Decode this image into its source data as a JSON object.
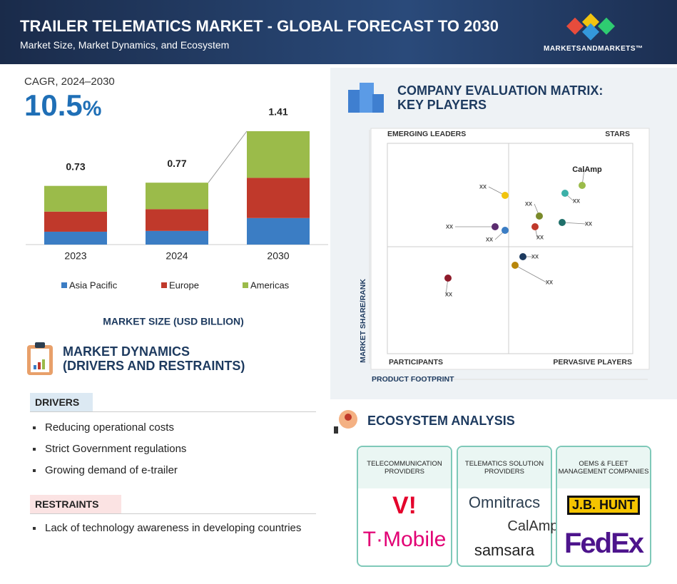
{
  "header": {
    "title": "TRAILER TELEMATICS MARKET - GLOBAL FORECAST TO 2030",
    "subtitle": "Market Size, Market Dynamics, and Ecosystem",
    "brand": "MARKETSANDMARKETS™"
  },
  "cagr": {
    "label": "CAGR, 2024–2030",
    "value": "10.5",
    "unit": "%"
  },
  "chart_data": {
    "type": "stacked-bar",
    "title": "MARKET SIZE (USD BILLION)",
    "categories": [
      "2023",
      "2024",
      "2030"
    ],
    "series": [
      {
        "name": "Asia Pacific",
        "color": "#3b7dc4",
        "values": [
          0.16,
          0.17,
          0.33
        ]
      },
      {
        "name": "Europe",
        "color": "#c0392b",
        "values": [
          0.25,
          0.27,
          0.5
        ]
      },
      {
        "name": "Americas",
        "color": "#9bbb4a",
        "values": [
          0.32,
          0.33,
          0.58
        ]
      }
    ],
    "totals": [
      0.73,
      0.77,
      1.41
    ]
  },
  "matrix": {
    "title": [
      "COMPANY EVALUATION MATRIX:",
      "KEY PLAYERS"
    ],
    "quadrants": [
      "EMERGING LEADERS",
      "STARS",
      "PARTICIPANTS",
      "PERVASIVE PLAYERS"
    ],
    "y_label": "MARKET SHARE/RANK",
    "x_label": "PRODUCT FOOTPRINT",
    "point_labels": [
      "CalAmp",
      "xx",
      "xx",
      "xx",
      "xx",
      "xx",
      "xx",
      "xx",
      "xx",
      "xx",
      "xx"
    ]
  },
  "dynamics": {
    "title": [
      "MARKET DYNAMICS",
      "(DRIVERS AND RESTRAINTS)"
    ],
    "drivers": {
      "heading": "DRIVERS",
      "items": [
        "Reducing operational costs",
        "Strict Government regulations",
        "Growing demand of e-trailer"
      ]
    },
    "restraints": {
      "heading": "RESTRAINTS",
      "items": [
        "Lack of technology awareness in developing countries"
      ]
    }
  },
  "ecosystem": {
    "title": "ECOSYSTEM ANALYSIS",
    "columns": [
      {
        "heading": "TELECOMMUNICATION PROVIDERS",
        "logos": [
          "V!",
          "T·Mobile"
        ]
      },
      {
        "heading": "TELEMATICS SOLUTION PROVIDERS",
        "logos": [
          "Omnitracs",
          "CalAmp",
          "samsara"
        ]
      },
      {
        "heading": "OEMS & FLEET MANAGEMENT COMPANIES",
        "logos": [
          "J.B. HUNT",
          "FedEx"
        ]
      }
    ]
  }
}
